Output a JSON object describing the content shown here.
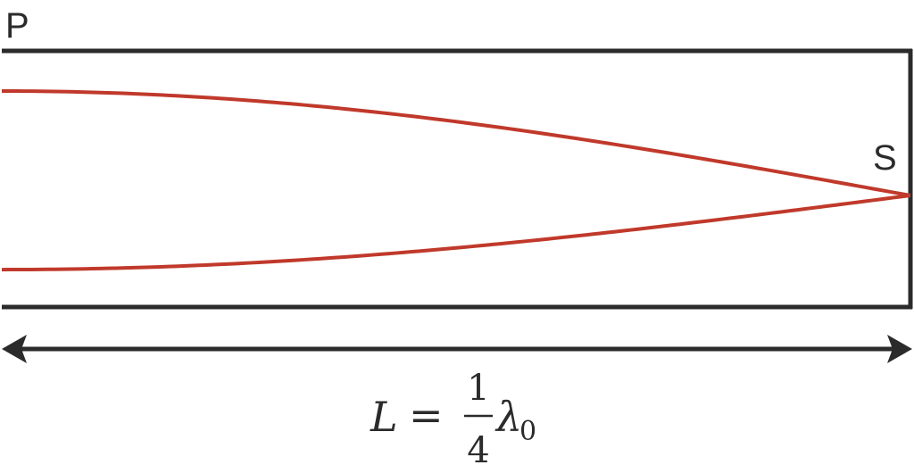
{
  "labels": {
    "open_end": "P",
    "closed_end": "S"
  },
  "length_formula": {
    "variable": "L",
    "equals": "=",
    "numerator": "1",
    "denominator": "4",
    "lambda": "λ",
    "subscript": "0"
  },
  "colors": {
    "tube": "#2b2b2b",
    "wave": "#c0392b",
    "arrow": "#2b2b2b"
  }
}
